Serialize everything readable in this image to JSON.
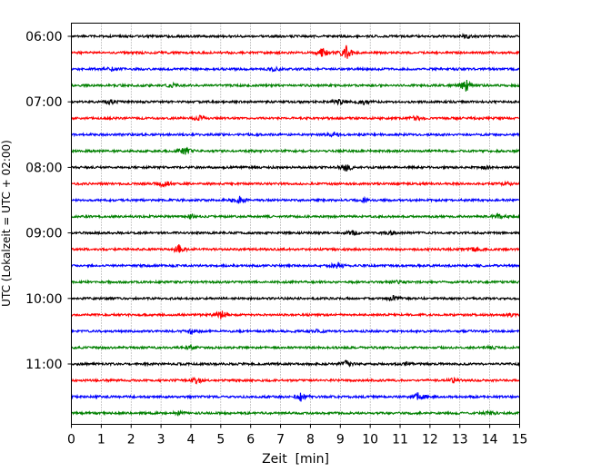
{
  "chart_data": {
    "type": "line",
    "title": "",
    "xlabel": "Zeit  [min]",
    "ylabel": "UTC (Lokalzeit = UTC + 02:00)",
    "xlim": [
      0,
      15
    ],
    "x_ticks": [
      0,
      1,
      2,
      3,
      4,
      5,
      6,
      7,
      8,
      9,
      10,
      11,
      12,
      13,
      14,
      15
    ],
    "y_tick_labels": [
      "06:00",
      "07:00",
      "08:00",
      "09:00",
      "10:00",
      "11:00"
    ],
    "grid": "vertical dotted",
    "trace_colors": [
      "#000000",
      "#ff0000",
      "#0000ff",
      "#008000"
    ],
    "trace_start_times": [
      "06:00",
      "06:15",
      "06:30",
      "06:45",
      "07:00",
      "07:15",
      "07:30",
      "07:45",
      "08:00",
      "08:15",
      "08:30",
      "08:45",
      "09:00",
      "09:15",
      "09:30",
      "09:45",
      "10:00",
      "10:15",
      "10:30",
      "10:45",
      "11:00",
      "11:15",
      "11:30",
      "11:45"
    ],
    "trace_events": [
      [
        [
          13.2,
          0.5
        ]
      ],
      [
        [
          8.4,
          1.5
        ],
        [
          9.2,
          2.2
        ]
      ],
      [
        [
          1.4,
          0.8
        ],
        [
          6.8,
          0.6
        ]
      ],
      [
        [
          3.4,
          0.6
        ],
        [
          13.2,
          2.0
        ]
      ],
      [
        [
          1.3,
          0.8
        ],
        [
          9.0,
          1.0
        ],
        [
          9.8,
          0.9
        ]
      ],
      [
        [
          4.3,
          1.0
        ],
        [
          11.5,
          0.7
        ]
      ],
      [
        [
          8.8,
          0.7
        ]
      ],
      [
        [
          3.8,
          1.3
        ]
      ],
      [
        [
          9.2,
          1.2
        ],
        [
          13.9,
          0.5
        ]
      ],
      [
        [
          3.1,
          1.3
        ],
        [
          14.6,
          0.5
        ]
      ],
      [
        [
          5.6,
          1.4
        ],
        [
          9.8,
          0.6
        ]
      ],
      [
        [
          4.0,
          0.6
        ],
        [
          14.3,
          0.9
        ]
      ],
      [
        [
          9.4,
          0.9
        ],
        [
          10.7,
          0.6
        ]
      ],
      [
        [
          3.6,
          1.4
        ],
        [
          13.5,
          0.6
        ]
      ],
      [
        [
          8.9,
          1.2
        ]
      ],
      [
        [
          10.9,
          0.5
        ]
      ],
      [
        [
          10.8,
          0.9
        ]
      ],
      [
        [
          5.0,
          1.6
        ],
        [
          14.7,
          0.5
        ]
      ],
      [
        [
          4.0,
          1.0
        ],
        [
          8.2,
          0.8
        ]
      ],
      [
        [
          4.0,
          0.6
        ],
        [
          14.0,
          0.5
        ]
      ],
      [
        [
          9.2,
          1.0
        ],
        [
          11.2,
          0.5
        ]
      ],
      [
        [
          4.2,
          1.0
        ],
        [
          12.8,
          0.8
        ]
      ],
      [
        [
          7.7,
          1.5
        ],
        [
          11.6,
          1.2
        ]
      ],
      [
        [
          3.6,
          0.5
        ],
        [
          14.0,
          0.6
        ]
      ]
    ]
  }
}
